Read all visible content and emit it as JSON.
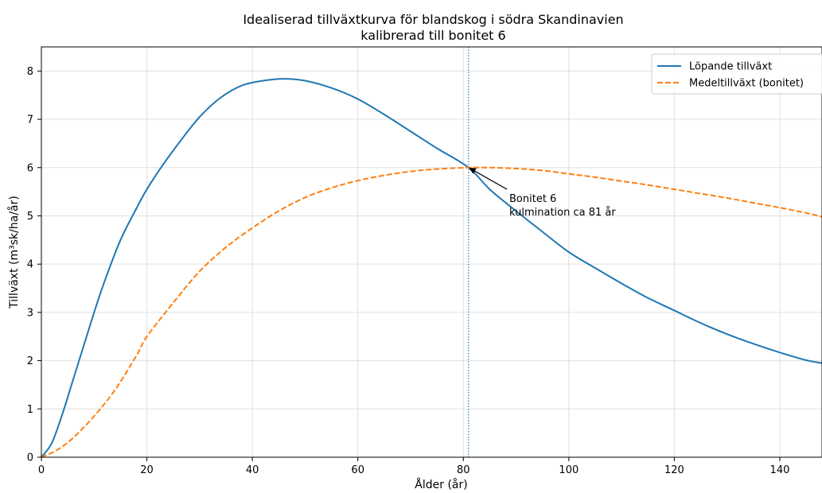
{
  "chart_data": {
    "type": "line",
    "title": "Idealiserad tillväxtkurva för blandskog i södra Skandinavien",
    "subtitle": "kalibrerad till bonitet 6",
    "xlabel": "Ålder (år)",
    "ylabel": "Tillväxt (m³sk/ha/år)",
    "xlim": [
      0,
      148
    ],
    "ylim": [
      0,
      8.5
    ],
    "xticks": [
      0,
      20,
      40,
      60,
      80,
      100,
      120,
      140
    ],
    "yticks": [
      0,
      1,
      2,
      3,
      4,
      5,
      6,
      7,
      8
    ],
    "grid": true,
    "legend_position": "top-right",
    "series": [
      {
        "name": "Löpande tillväxt",
        "color": "#1f77b4",
        "style": "solid",
        "x": [
          0,
          2,
          4,
          6,
          8,
          10,
          12,
          15,
          18,
          20,
          23,
          26,
          30,
          34,
          38,
          42,
          46,
          50,
          55,
          60,
          65,
          70,
          75,
          81,
          85,
          90,
          95,
          100,
          105,
          110,
          115,
          120,
          125,
          130,
          135,
          140,
          145,
          148
        ],
        "y": [
          0,
          0.3,
          0.9,
          1.6,
          2.3,
          3.0,
          3.65,
          4.5,
          5.15,
          5.55,
          6.05,
          6.5,
          7.05,
          7.45,
          7.7,
          7.8,
          7.84,
          7.8,
          7.65,
          7.42,
          7.1,
          6.75,
          6.4,
          6.0,
          5.55,
          5.1,
          4.67,
          4.25,
          3.92,
          3.6,
          3.3,
          3.04,
          2.78,
          2.55,
          2.35,
          2.17,
          2.01,
          1.95
        ]
      },
      {
        "name": "Medeltillväxt (bonitet)",
        "color": "#ff7f0e",
        "style": "dashed",
        "x": [
          0,
          3,
          6,
          10,
          14,
          18,
          20,
          25,
          30,
          35,
          40,
          45,
          50,
          55,
          60,
          65,
          70,
          75,
          81,
          85,
          90,
          95,
          100,
          105,
          110,
          115,
          120,
          125,
          130,
          135,
          140,
          145,
          148
        ],
        "y": [
          0,
          0.15,
          0.4,
          0.85,
          1.4,
          2.1,
          2.5,
          3.2,
          3.85,
          4.35,
          4.75,
          5.1,
          5.38,
          5.58,
          5.73,
          5.84,
          5.92,
          5.97,
          6.0,
          6.0,
          5.98,
          5.94,
          5.87,
          5.8,
          5.72,
          5.64,
          5.55,
          5.46,
          5.37,
          5.27,
          5.17,
          5.06,
          4.98
        ]
      }
    ],
    "vline": {
      "x": 81,
      "color": "#1f77b4"
    },
    "annotation": {
      "line1": "Bonitet 6",
      "line2": "kulmination ca 81 år",
      "point_x": 81,
      "point_y": 6.0
    }
  }
}
